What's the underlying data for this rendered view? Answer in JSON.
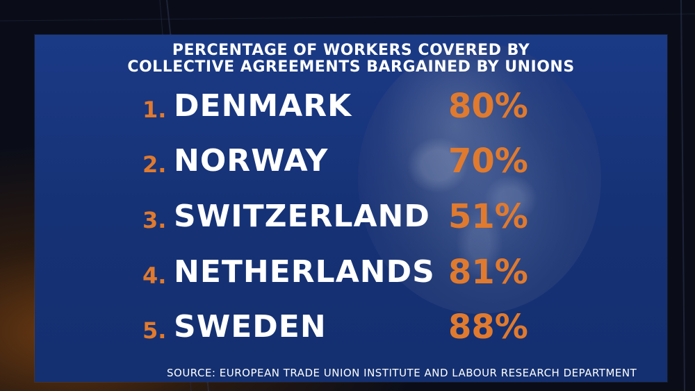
{
  "chart_data": {
    "type": "table",
    "title_lines": [
      "PERCENTAGE OF WORKERS COVERED BY",
      "COLLECTIVE AGREEMENTS BARGAINED BY UNIONS"
    ],
    "rows": [
      {
        "rank": "1.",
        "country": "DENMARK",
        "value": "80%"
      },
      {
        "rank": "2.",
        "country": "NORWAY",
        "value": "70%"
      },
      {
        "rank": "3.",
        "country": "SWITZERLAND",
        "value": "51%"
      },
      {
        "rank": "4.",
        "country": "NETHERLANDS",
        "value": "81%"
      },
      {
        "rank": "5.",
        "country": "SWEDEN",
        "value": "88%"
      }
    ],
    "source": "SOURCE: EUROPEAN TRADE UNION INSTITUTE AND LABOUR RESEARCH DEPARTMENT"
  },
  "colors": {
    "accent": "#e07a2e",
    "panel": "#1b3a86",
    "text": "#ffffff"
  }
}
